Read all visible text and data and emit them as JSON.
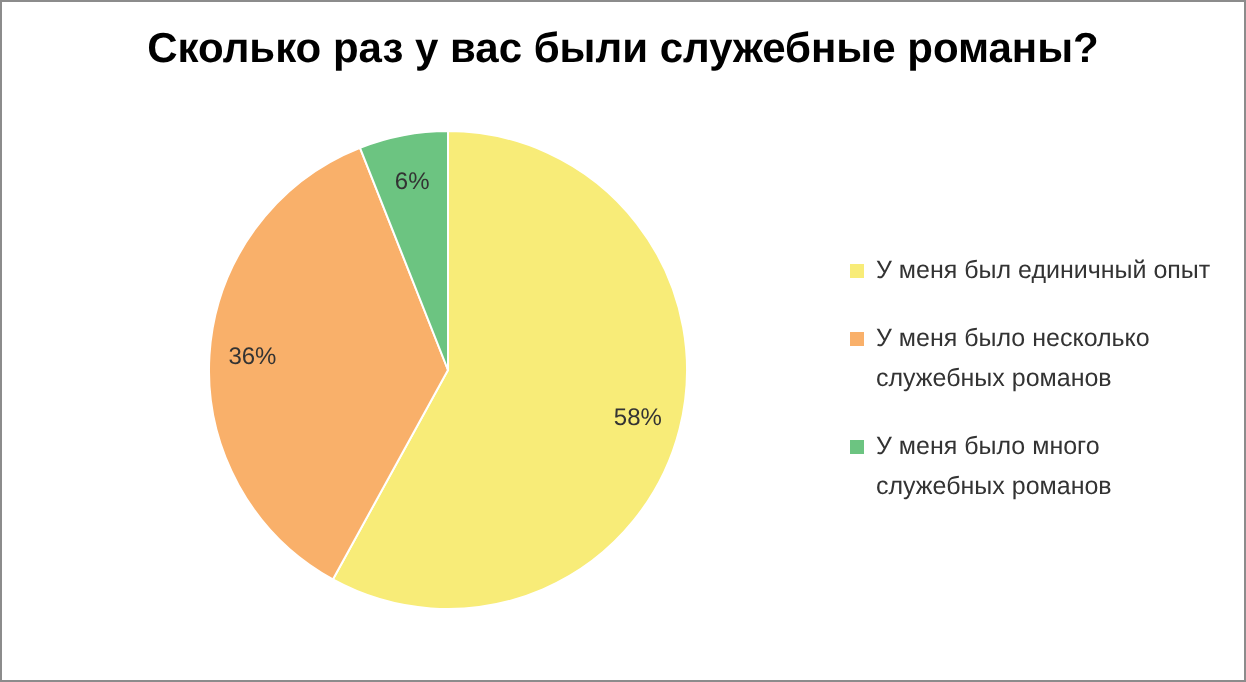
{
  "chart_data": {
    "type": "pie",
    "title": "Сколько раз у вас были служебные романы?",
    "categories": [
      "У меня был единичный опыт",
      "У меня было несколько служебных романов",
      "У меня было много служебных романов"
    ],
    "values": [
      58,
      36,
      6
    ],
    "colors": [
      "#f8ec78",
      "#f9b06a",
      "#6cc481"
    ],
    "value_labels": [
      "58%",
      "36%",
      "6%"
    ],
    "legend": "right"
  }
}
